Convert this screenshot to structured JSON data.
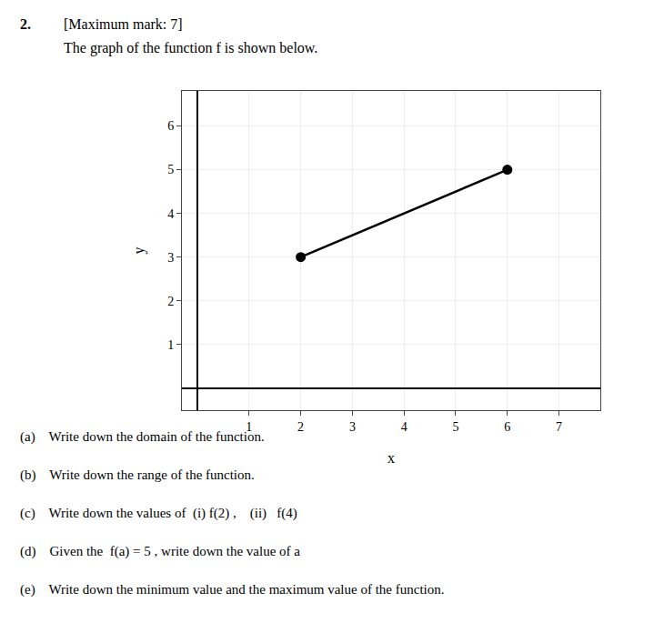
{
  "chart_data": {
    "type": "line",
    "annotations": [
      "2.",
      "[Maximum mark: 7]",
      "The graph of the function f is shown below.",
      "(a)    Write down the domain of the function.",
      "(b)    Write down the range of the function.",
      "(c)    Write down the values of  (i) f(2) ,    (ii)   f(4)",
      "(d)    Given the  f(a) = 5 , write down the value of a",
      "(e)    Write down the minimum value and the maximum value of the function."
    ],
    "x": [
      2,
      6
    ],
    "values": [
      3,
      5
    ],
    "color": "#000000",
    "marker": "circle",
    "xlabel": "x",
    "ylabel": "y",
    "xlim": [
      -0.3,
      7.8
    ],
    "ylim": [
      -0.5,
      6.8
    ],
    "xticks": [
      1,
      2,
      3,
      4,
      5,
      6,
      7
    ],
    "yticks": [
      1,
      2,
      3,
      4,
      5,
      6
    ],
    "grid": true
  }
}
